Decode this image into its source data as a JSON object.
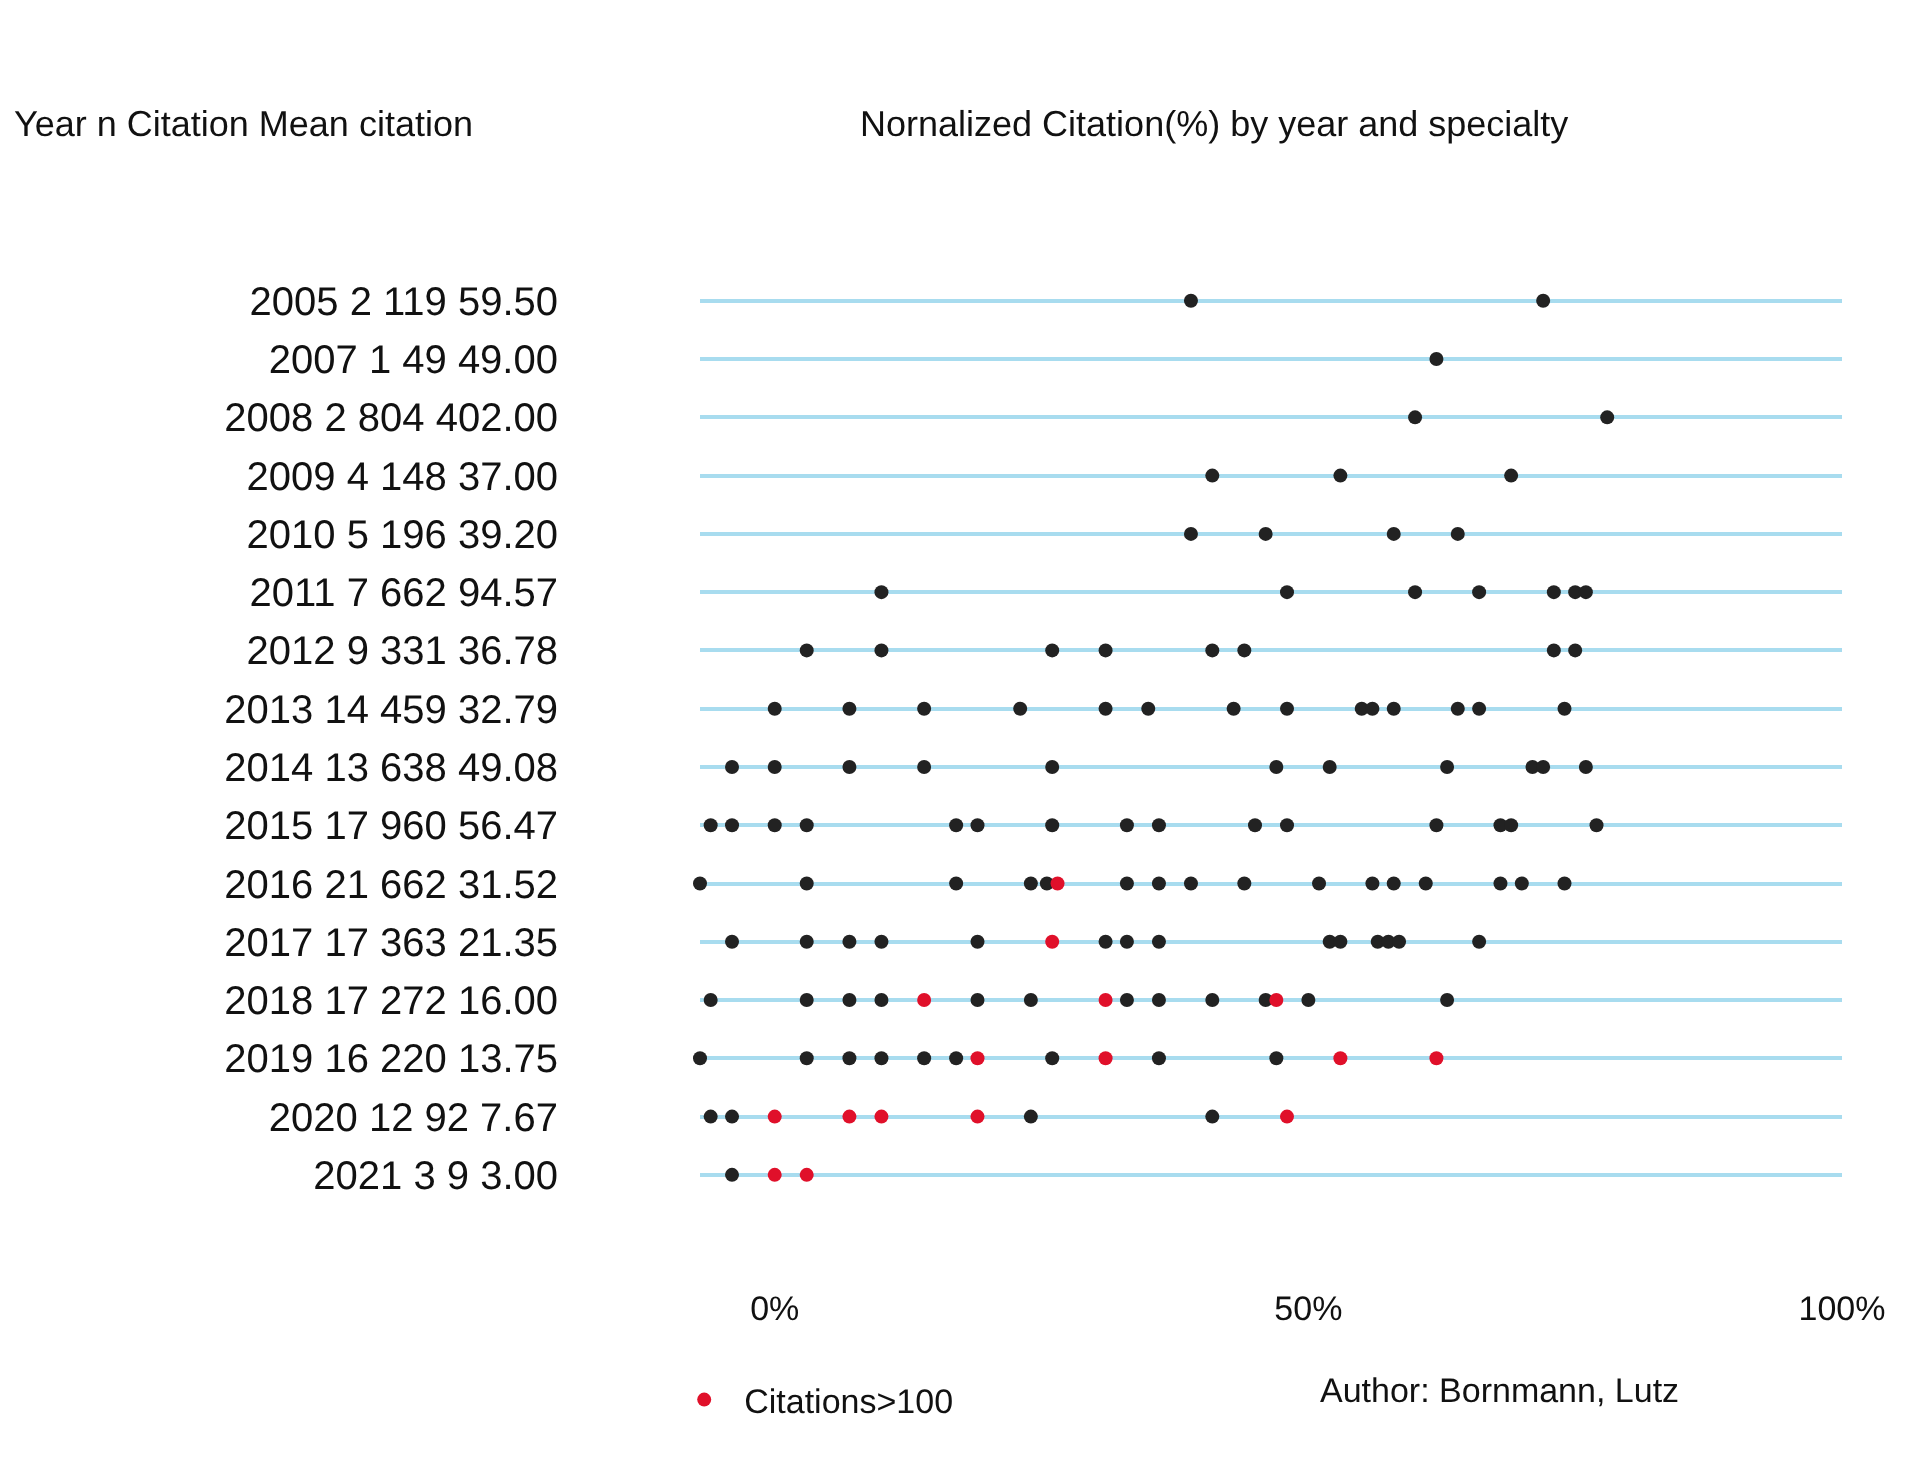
{
  "chart_data": {
    "type": "scatter",
    "orientation": "horizontal",
    "title": "Nornalized Citation(%) by year and specialty",
    "ylabel": "Year n Citation Mean citation",
    "categories": [
      "2005 2 119 59.50",
      "2007 1 49 49.00",
      "2008 2 804 402.00",
      "2009 4 148 37.00",
      "2010 5 196 39.20",
      "2011 7 662 94.57",
      "2012 9 331 36.78",
      "2013 14 459 32.79",
      "2014 13 638 49.08",
      "2015 17 960 56.47",
      "2016 21 662 31.52",
      "2017 17 363 21.35",
      "2018 17 272 16.00",
      "2019 16 220 13.75",
      "2020 12 92 7.67",
      "2021 3 9 3.00"
    ],
    "series": [
      {
        "color": "#222222",
        "values": [
          39,
          62,
          60,
          41,
          39,
          10,
          3,
          0,
          -4,
          -6,
          -7,
          -4,
          -6,
          -7,
          -6,
          -4
        ]
      },
      {
        "color": "#222222",
        "values": [
          72,
          null,
          78,
          53,
          46,
          48,
          10,
          7,
          0,
          -4,
          3,
          3,
          3,
          3,
          -4,
          null
        ]
      },
      {
        "color": "#222222",
        "values": [
          null,
          null,
          null,
          69,
          58,
          60,
          26,
          14,
          7,
          0,
          17,
          7,
          7,
          7,
          24,
          null
        ]
      },
      {
        "color": "#222222",
        "values": [
          null,
          null,
          null,
          null,
          64,
          66,
          31,
          23,
          14,
          3,
          24,
          10,
          10,
          10,
          41,
          null
        ]
      },
      {
        "color": "#222222",
        "values": [
          null,
          null,
          null,
          null,
          null,
          73,
          41,
          31,
          26,
          17,
          25.5,
          19,
          19,
          14,
          null,
          null
        ]
      },
      {
        "color": "#222222",
        "values": [
          null,
          null,
          null,
          null,
          null,
          75,
          44,
          35,
          47,
          19,
          33,
          31,
          24,
          17,
          null,
          null
        ]
      },
      {
        "color": "#222222",
        "values": [
          null,
          null,
          null,
          null,
          null,
          76,
          73,
          43,
          52,
          26,
          36,
          33,
          33,
          26,
          null,
          null
        ]
      },
      {
        "color": "#222222",
        "values": [
          null,
          null,
          null,
          null,
          null,
          null,
          75,
          48,
          63,
          33,
          39,
          36,
          36,
          36,
          null,
          null
        ]
      },
      {
        "color": "#222222",
        "values": [
          null,
          null,
          null,
          null,
          null,
          null,
          null,
          55,
          71,
          36,
          44,
          52,
          41,
          47,
          null,
          null
        ]
      },
      {
        "color": "#222222",
        "values": [
          null,
          null,
          null,
          null,
          null,
          null,
          null,
          56,
          72,
          45,
          51,
          53,
          46,
          null,
          null,
          null
        ]
      },
      {
        "color": "#222222",
        "values": [
          null,
          null,
          null,
          null,
          null,
          null,
          null,
          58,
          76,
          48,
          56,
          56.5,
          50,
          null,
          null,
          null
        ]
      },
      {
        "color": "#222222",
        "values": [
          null,
          null,
          null,
          null,
          null,
          null,
          null,
          64,
          null,
          62,
          58,
          57.5,
          63,
          null,
          null,
          null
        ]
      },
      {
        "color": "#222222",
        "values": [
          null,
          null,
          null,
          null,
          null,
          null,
          null,
          66,
          null,
          68,
          61,
          58.5,
          null,
          null,
          null,
          null
        ]
      },
      {
        "color": "#222222",
        "values": [
          null,
          null,
          null,
          null,
          null,
          null,
          null,
          74,
          null,
          69,
          68,
          66,
          null,
          null,
          null,
          null
        ]
      },
      {
        "color": "#222222",
        "values": [
          null,
          null,
          null,
          null,
          null,
          null,
          null,
          null,
          null,
          77,
          70,
          null,
          null,
          null,
          null,
          null
        ]
      },
      {
        "color": "#222222",
        "values": [
          null,
          null,
          null,
          null,
          null,
          null,
          null,
          null,
          null,
          null,
          74,
          null,
          null,
          null,
          null,
          null
        ]
      },
      {
        "name": "Citations>100",
        "color": "#e0102a",
        "values": [
          null,
          null,
          null,
          null,
          null,
          null,
          null,
          null,
          null,
          null,
          26.5,
          26,
          14,
          19,
          0,
          0
        ]
      },
      {
        "color": "#e0102a",
        "values": [
          null,
          null,
          null,
          null,
          null,
          null,
          null,
          null,
          null,
          null,
          null,
          null,
          31,
          31,
          7,
          3
        ]
      },
      {
        "color": "#e0102a",
        "values": [
          null,
          null,
          null,
          null,
          null,
          null,
          null,
          null,
          null,
          null,
          null,
          null,
          47,
          53,
          10,
          null
        ]
      },
      {
        "color": "#e0102a",
        "values": [
          null,
          null,
          null,
          null,
          null,
          null,
          null,
          null,
          null,
          null,
          null,
          null,
          null,
          62,
          19,
          null
        ]
      },
      {
        "color": "#e0102a",
        "values": [
          null,
          null,
          null,
          null,
          null,
          null,
          null,
          null,
          null,
          null,
          null,
          null,
          null,
          null,
          48,
          null
        ]
      }
    ],
    "xlim": [
      -7,
      100
    ],
    "xticks": [
      {
        "value": 0,
        "label": "0%"
      },
      {
        "value": 50,
        "label": "50%"
      },
      {
        "value": 100,
        "label": "100%"
      }
    ],
    "grid": "y",
    "marker": "circle",
    "legend": "bottom",
    "annotations": [
      "Author: Bornmann, Lutz"
    ]
  }
}
